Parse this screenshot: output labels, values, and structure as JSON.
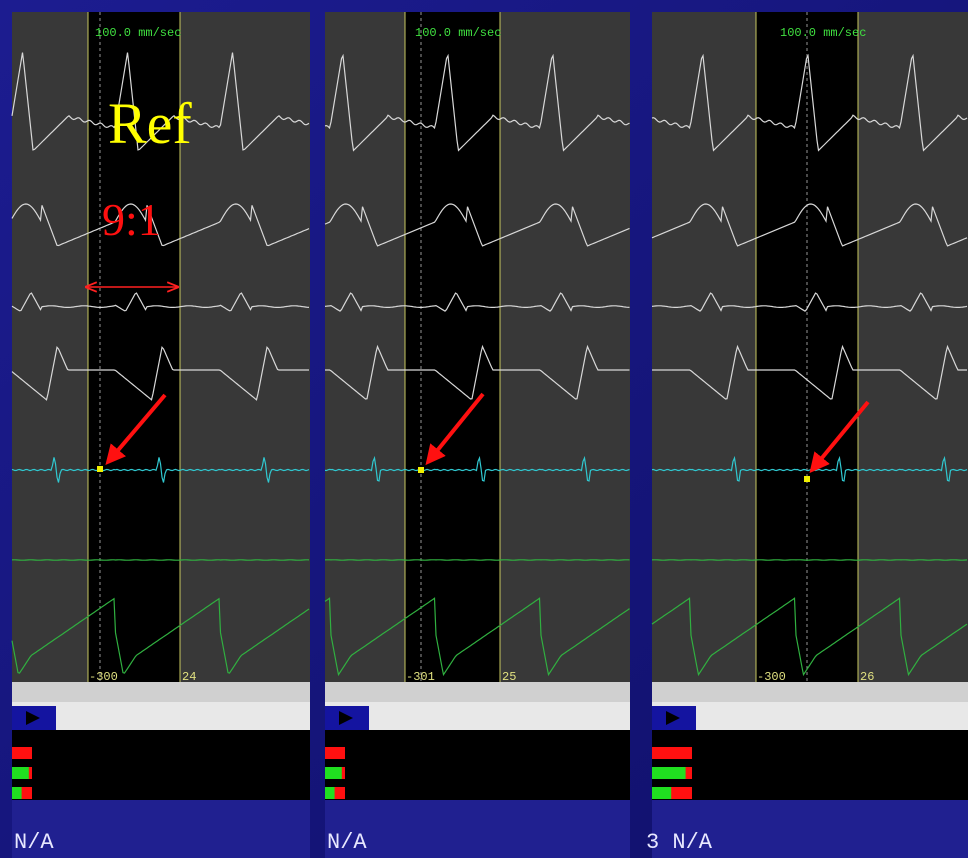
{
  "panels": [
    {
      "speed": "100.0 mm/sec",
      "left_marker": "-300",
      "right_marker": "24",
      "status": "N/A"
    },
    {
      "speed": "100.0 mm/sec",
      "left_marker": "-301",
      "right_marker": "25",
      "status": "N/A"
    },
    {
      "speed": "100.0 mm/sec",
      "left_marker": "-300",
      "right_marker": "26",
      "status": "3 N/A"
    }
  ],
  "annotations": {
    "ref": "Ref",
    "ratio": "9:1"
  }
}
